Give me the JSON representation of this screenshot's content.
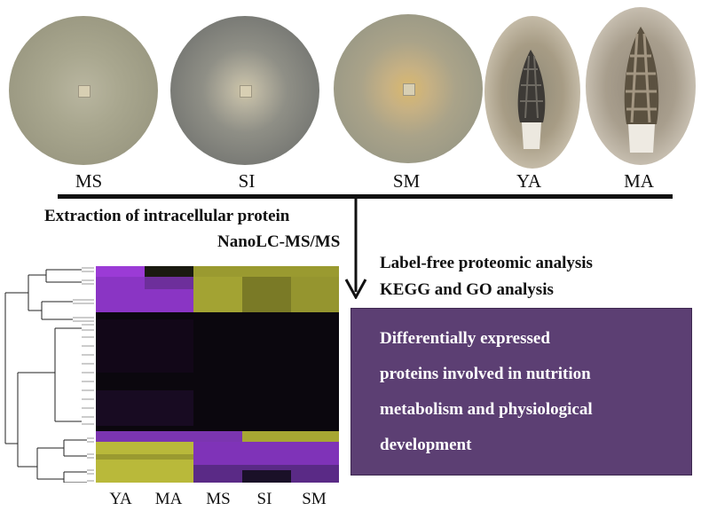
{
  "samples": {
    "ms": "MS",
    "si": "SI",
    "sm": "SM",
    "ya": "YA",
    "ma": "MA"
  },
  "methods": {
    "extraction": "Extraction of intracellular protein",
    "nanolc": "NanoLC-MS/MS",
    "label_free": "Label-free proteomic analysis",
    "kegg_go": "KEGG and GO analysis"
  },
  "result_box": {
    "lines": [
      "Differentially expressed",
      "proteins involved in nutrition",
      "metabolism and physiological",
      "development"
    ],
    "color": "#5c3f73"
  },
  "heatmap": {
    "columns": [
      "YA",
      "MA",
      "MS",
      "SI",
      "SM"
    ],
    "high_color": "#9b3bd6",
    "low_color": "#b9b93a",
    "mid_color": "#000000"
  }
}
